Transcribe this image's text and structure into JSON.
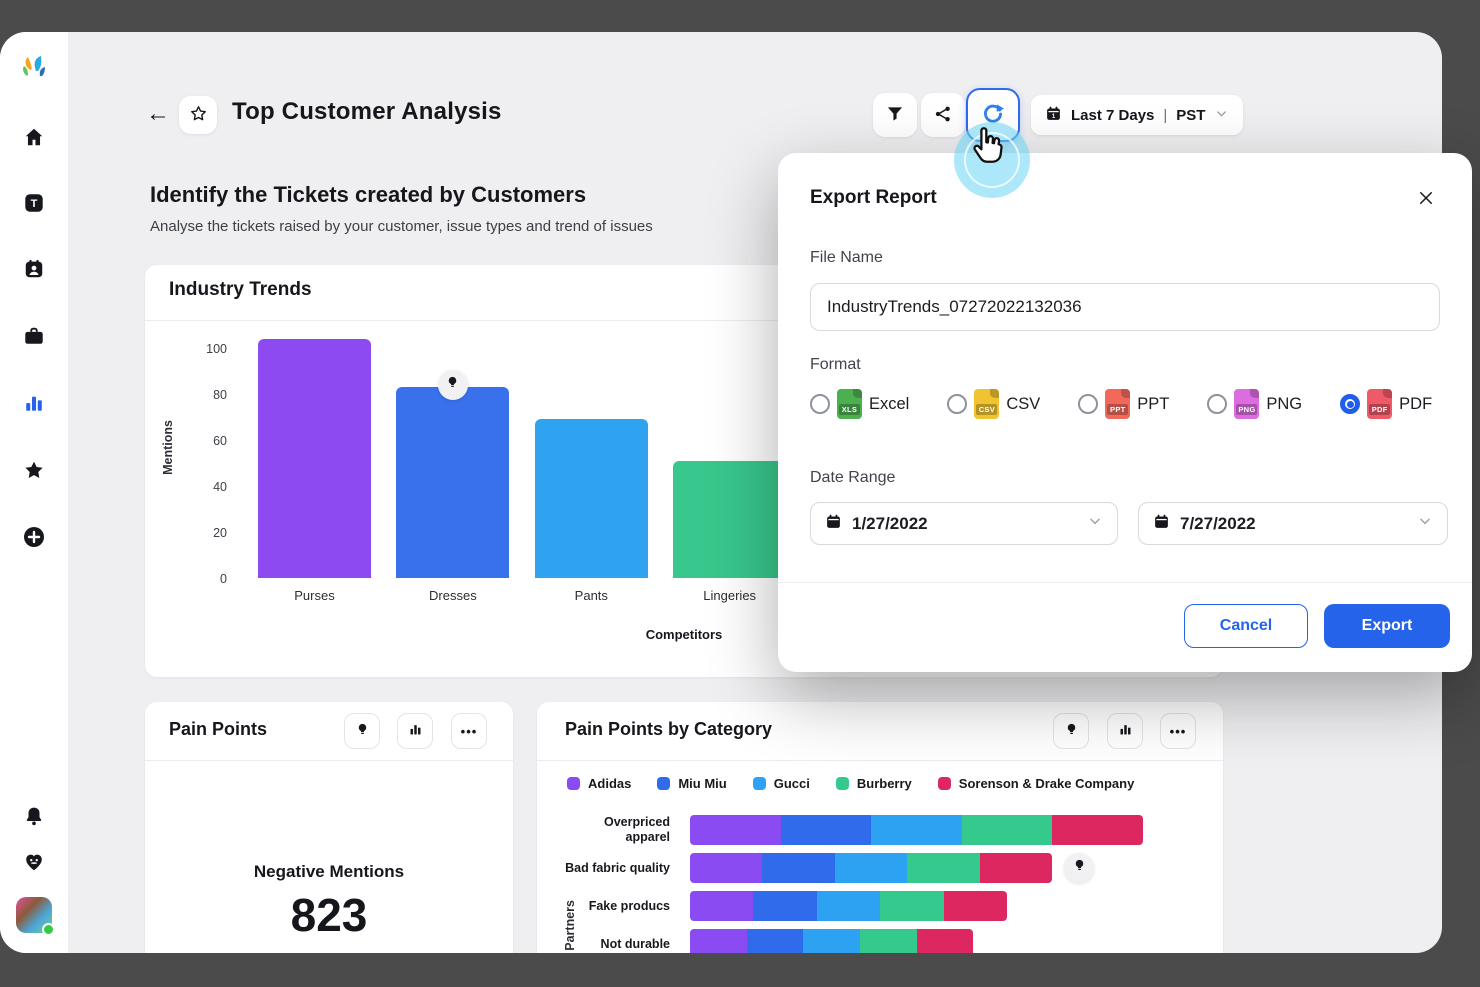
{
  "colors": {
    "accent_blue": "#2563eb",
    "ripple_cyan": "#67d5f5",
    "background_dark": "#4b4b4b",
    "app_background": "#efeff1"
  },
  "sidebar": {
    "icons": [
      "sprinklr-logo",
      "home",
      "tasks",
      "contacts",
      "briefcase",
      "analytics",
      "favorites",
      "add",
      "notifications",
      "community",
      "avatar"
    ],
    "active_item": "analytics",
    "avatar_status": "online"
  },
  "header": {
    "back": "←",
    "title": "Top Customer Analysis",
    "toolbar_icons": [
      "filter",
      "share",
      "export-refresh"
    ],
    "date_range": {
      "icon": "calendar",
      "label": "Last 7 Days",
      "separator": "|",
      "timezone": "PST"
    }
  },
  "page": {
    "heading": "Identify the Tickets created by Customers",
    "subheading": "Analyse the tickets raised by your customer, issue types and trend of issues"
  },
  "cards": {
    "industry_trends": {
      "title": "Industry Trends"
    },
    "pain_points": {
      "title": "Pain Points",
      "action_icons": [
        "insight",
        "column-chart",
        "more"
      ],
      "metric_label": "Negative Mentions",
      "metric_value": "823"
    },
    "pain_points_by_category": {
      "title": "Pain Points by Category",
      "action_icons": [
        "insight",
        "column-chart",
        "more"
      ]
    }
  },
  "export_modal": {
    "title": "Export Report",
    "file_name_label": "File Name",
    "file_name_value": "IndustryTrends_07272022132036",
    "format_label": "Format",
    "formats": [
      {
        "label": "Excel",
        "badge": "XLS",
        "color": "#4caf50",
        "selected": false
      },
      {
        "label": "CSV",
        "badge": "CSV",
        "color": "#f0c330",
        "selected": false
      },
      {
        "label": "PPT",
        "badge": "PPT",
        "color": "#f2695c",
        "selected": false
      },
      {
        "label": "PNG",
        "badge": "PNG",
        "color": "#dd6ce0",
        "selected": false
      },
      {
        "label": "PDF",
        "badge": "PDF",
        "color": "#ee5a68",
        "selected": true
      }
    ],
    "date_range_label": "Date Range",
    "date_from": "1/27/2022",
    "date_to": "7/27/2022",
    "cancel_label": "Cancel",
    "export_label": "Export"
  },
  "chart_data": [
    {
      "type": "bar",
      "title": "Industry Trends",
      "categories": [
        "Purses",
        "Dresses",
        "Pants",
        "Lingeries"
      ],
      "values": [
        104,
        83,
        69,
        51
      ],
      "colors": [
        "#8c4af0",
        "#3970ec",
        "#2fa3f0",
        "#38c78c"
      ],
      "xlabel": "Competitors",
      "ylabel": "Mentions",
      "ylim": [
        0,
        110
      ],
      "yticks": [
        0,
        20,
        40,
        60,
        80,
        100
      ],
      "grid": false,
      "insight_marker_category": "Dresses"
    },
    {
      "type": "bar",
      "orientation": "horizontal-stacked",
      "title": "Pain Points by Category",
      "categories": [
        "Overpriced apparel",
        "Bad fabric quality",
        "Fake producs",
        "Not durable"
      ],
      "series": [
        {
          "name": "Adidas",
          "color": "#8b4bf2",
          "values": [
            20,
            16,
            14,
            12.5
          ]
        },
        {
          "name": "Miu Miu",
          "color": "#2f6bea",
          "values": [
            20,
            16,
            14,
            12.5
          ]
        },
        {
          "name": "Gucci",
          "color": "#2ea2f2",
          "values": [
            20,
            16,
            14,
            12.5
          ]
        },
        {
          "name": "Burberry",
          "color": "#35c98e",
          "values": [
            20,
            16,
            14,
            12.5
          ]
        },
        {
          "name": "Sorenson & Drake Company",
          "color": "#dc2760",
          "values": [
            20,
            16,
            14,
            12.5
          ]
        }
      ],
      "xlim": [
        0,
        100
      ],
      "ylabel": "Partners",
      "legend_position": "top",
      "insight_marker_category": "Bad fabric quality"
    }
  ]
}
